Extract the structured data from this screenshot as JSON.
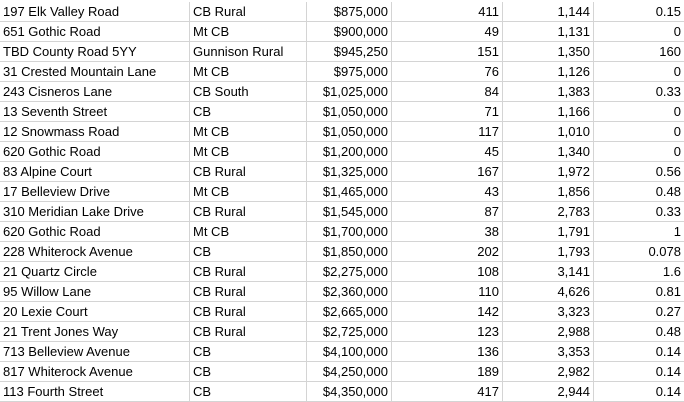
{
  "grid": {
    "rows": [
      [
        "197 Elk Valley Road",
        "CB Rural",
        "$875,000",
        "411",
        "1,144",
        "0.15"
      ],
      [
        "651 Gothic Road",
        "Mt CB",
        "$900,000",
        "49",
        "1,131",
        "0"
      ],
      [
        "TBD County Road 5YY",
        "Gunnison Rural",
        "$945,250",
        "151",
        "1,350",
        "160"
      ],
      [
        "31 Crested Mountain Lane",
        "Mt CB",
        "$975,000",
        "76",
        "1,126",
        "0"
      ],
      [
        "243 Cisneros Lane",
        "CB South",
        "$1,025,000",
        "84",
        "1,383",
        "0.33"
      ],
      [
        "13 Seventh Street",
        "CB",
        "$1,050,000",
        "71",
        "1,166",
        "0"
      ],
      [
        "12 Snowmass Road",
        "Mt CB",
        "$1,050,000",
        "117",
        "1,010",
        "0"
      ],
      [
        "620 Gothic Road",
        "Mt CB",
        "$1,200,000",
        "45",
        "1,340",
        "0"
      ],
      [
        "83 Alpine Court",
        "CB Rural",
        "$1,325,000",
        "167",
        "1,972",
        "0.56"
      ],
      [
        "17 Belleview Drive",
        "Mt CB",
        "$1,465,000",
        "43",
        "1,856",
        "0.48"
      ],
      [
        "310 Meridian Lake Drive",
        "CB Rural",
        "$1,545,000",
        "87",
        "2,783",
        "0.33"
      ],
      [
        "620 Gothic Road",
        "Mt CB",
        "$1,700,000",
        "38",
        "1,791",
        "1"
      ],
      [
        "228 Whiterock Avenue",
        "CB",
        "$1,850,000",
        "202",
        "1,793",
        "0.078"
      ],
      [
        "21 Quartz Circle",
        "CB Rural",
        "$2,275,000",
        "108",
        "3,141",
        "1.6"
      ],
      [
        "95 Willow Lane",
        "CB Rural",
        "$2,360,000",
        "110",
        "4,626",
        "0.81"
      ],
      [
        "20 Lexie Court",
        "CB Rural",
        "$2,665,000",
        "142",
        "3,323",
        "0.27"
      ],
      [
        "21 Trent Jones Way",
        "CB Rural",
        "$2,725,000",
        "123",
        "2,988",
        "0.48"
      ],
      [
        "713 Belleview Avenue",
        "CB",
        "$4,100,000",
        "136",
        "3,353",
        "0.14"
      ],
      [
        "817 Whiterock Avenue",
        "CB",
        "$4,250,000",
        "189",
        "2,982",
        "0.14"
      ],
      [
        "113 Fourth Street",
        "CB",
        "$4,350,000",
        "417",
        "2,944",
        "0.14"
      ]
    ]
  }
}
